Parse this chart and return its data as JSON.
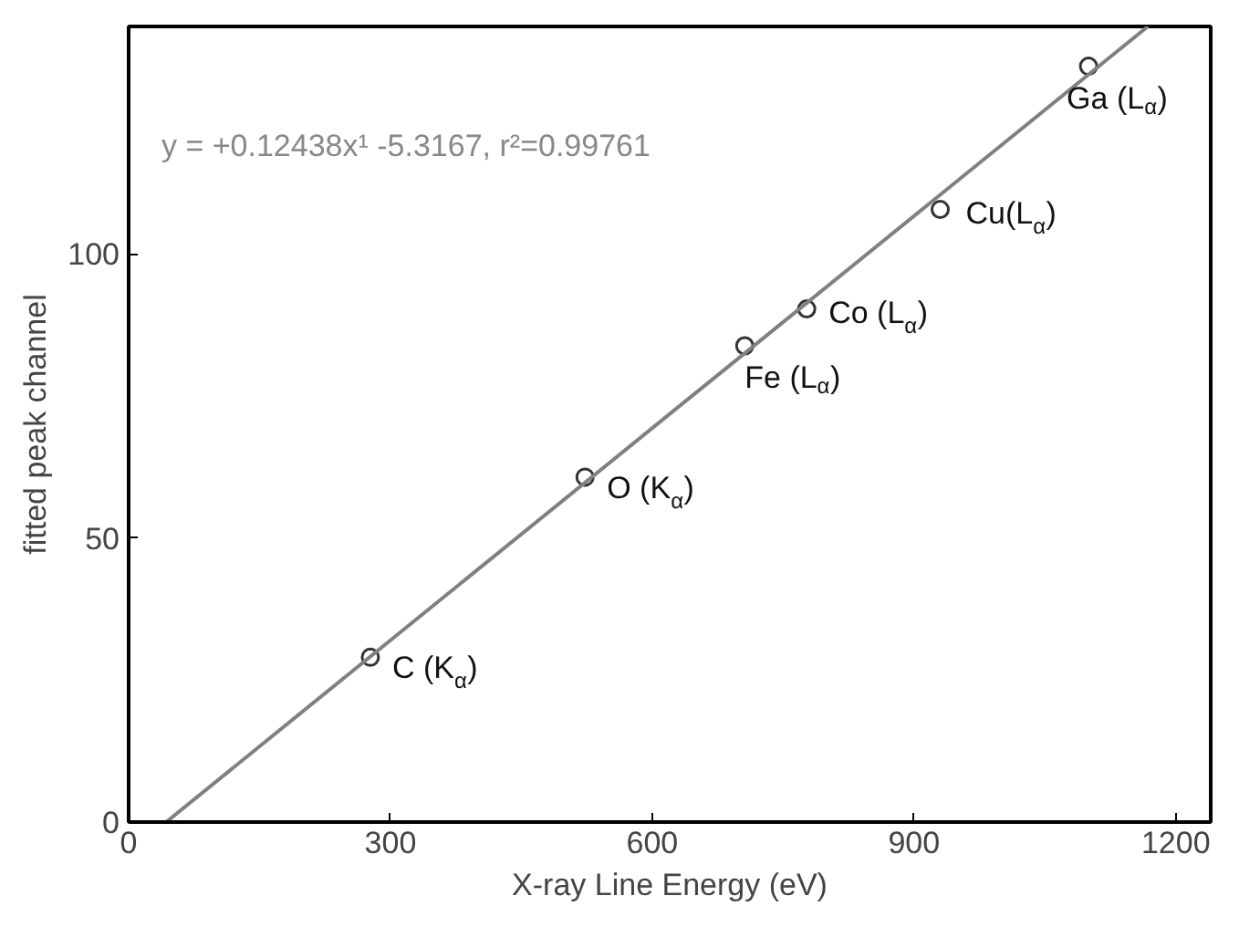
{
  "chart_data": {
    "type": "scatter",
    "xlabel": "X-ray Line Energy (eV)",
    "ylabel": "fitted peak channel",
    "xlim": [
      0,
      1240
    ],
    "ylim": [
      0,
      140
    ],
    "xticks": [
      0,
      300,
      600,
      900,
      1200
    ],
    "yticks": [
      0,
      50,
      100
    ],
    "grid": false,
    "series": [
      {
        "marker": "circle",
        "color": "#333333",
        "x": [
          277,
          523,
          706,
          777,
          930,
          1100
        ],
        "values": [
          29,
          60.7,
          83.8,
          90.3,
          107.8,
          133
        ]
      },
      {
        "type": "line",
        "marker": "none",
        "color": "#808080",
        "x": [
          43,
          1168
        ],
        "values": [
          0,
          140
        ]
      }
    ],
    "annotations": [
      "y = +0.12438x¹ -5.3167, r²=0.99761",
      {
        "text": "C (K$_{α}$)",
        "x": 277,
        "y": 29
      },
      {
        "text": "O (K$_{α}$)",
        "x": 523,
        "y": 60.7
      },
      {
        "text": "Fe (L$_{α}$)",
        "x": 706,
        "y": 83.8
      },
      {
        "text": "Co (L$_{α}$)",
        "x": 777,
        "y": 90.3
      },
      {
        "text": "Cu(L$_{α}$)",
        "x": 930,
        "y": 107.8
      },
      {
        "text": "Ga (L$_{α}$)",
        "x": 1100,
        "y": 133
      }
    ]
  }
}
